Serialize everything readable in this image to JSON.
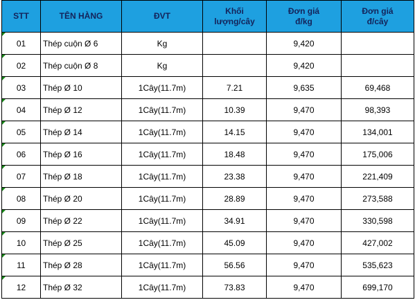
{
  "table": {
    "header": [
      [
        "STT"
      ],
      [
        "TÊN HÀNG"
      ],
      [
        "ĐVT"
      ],
      [
        "Khối",
        "lượng/cây"
      ],
      [
        "Đơn giá",
        "đ/kg"
      ],
      [
        "Đơn giá",
        "đ/cây"
      ]
    ],
    "rows": [
      [
        "01",
        "Thép cuộn Ø 6",
        "Kg",
        null,
        "9,420",
        null
      ],
      [
        "02",
        "Thép cuộn Ø 8",
        "Kg",
        null,
        "9,420",
        null
      ],
      [
        "03",
        "Thép  Ø 10",
        "1Cây(11.7m)",
        "7.21",
        "9,635",
        "69,468"
      ],
      [
        "04",
        "Thép  Ø 12",
        "1Cây(11.7m)",
        "10.39",
        "9,470",
        "98,393"
      ],
      [
        "05",
        "Thép  Ø 14",
        "1Cây(11.7m)",
        "14.15",
        "9,470",
        "134,001"
      ],
      [
        "06",
        "Thép  Ø 16",
        "1Cây(11.7m)",
        "18.48",
        "9,470",
        "175,006"
      ],
      [
        "07",
        "Thép  Ø 18",
        "1Cây(11.7m)",
        "23.38",
        "9,470",
        "221,409"
      ],
      [
        "08",
        "Thép  Ø 20",
        "1Cây(11.7m)",
        "28.89",
        "9,470",
        "273,588"
      ],
      [
        "09",
        "Thép  Ø 22",
        "1Cây(11.7m)",
        "34.91",
        "9,470",
        "330,598"
      ],
      [
        "10",
        "Thép  Ø 25",
        "1Cây(11.7m)",
        "45.09",
        "9,470",
        "427,002"
      ],
      [
        "11",
        "Thép  Ø 28",
        "1Cây(11.7m)",
        "56.56",
        "9,470",
        "535,623"
      ],
      [
        "12",
        "Thép  Ø 32",
        "1Cây(11.7m)",
        "73.83",
        "9,470",
        "699,170"
      ]
    ]
  }
}
